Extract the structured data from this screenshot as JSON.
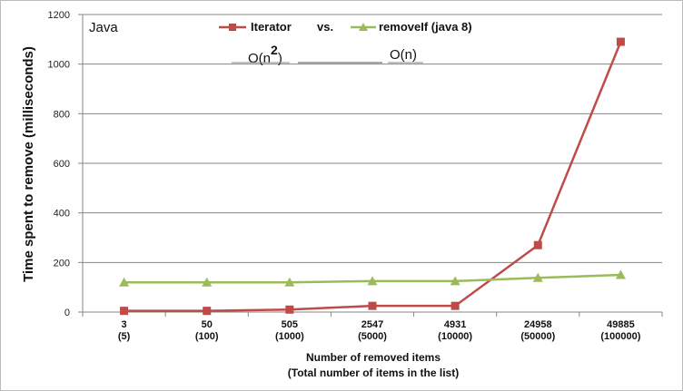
{
  "chart_data": {
    "type": "line",
    "title": "Java",
    "xlabel": "Number of removed items",
    "xlabel_sub": "(Total number of items in the list)",
    "ylabel": "Time spent to remove (milliseconds)",
    "ylim": [
      0,
      1200
    ],
    "yticks": [
      0,
      200,
      400,
      600,
      800,
      1000,
      1200
    ],
    "grid": true,
    "categories": [
      {
        "removed": "3",
        "total": "(5)"
      },
      {
        "removed": "50",
        "total": "(100)"
      },
      {
        "removed": "505",
        "total": "(1000)"
      },
      {
        "removed": "2547",
        "total": "(5000)"
      },
      {
        "removed": "4931",
        "total": "(10000)"
      },
      {
        "removed": "24958",
        "total": "(50000)"
      },
      {
        "removed": "49885",
        "total": "(100000)"
      }
    ],
    "series": [
      {
        "name": "Iterator",
        "color": "#be4b48",
        "marker": "square",
        "values": [
          5,
          5,
          10,
          25,
          25,
          270,
          1090
        ]
      },
      {
        "name": "removeIf (java 8)",
        "color": "#9bbb59",
        "marker": "triangle",
        "values": [
          120,
          120,
          120,
          125,
          125,
          138,
          150
        ]
      }
    ],
    "legend_separator": "vs.",
    "annotations": {
      "iterator_complexity": "O(n",
      "iterator_exponent": "2",
      "iterator_close": ")",
      "removeif_complexity": "O(n)"
    }
  }
}
